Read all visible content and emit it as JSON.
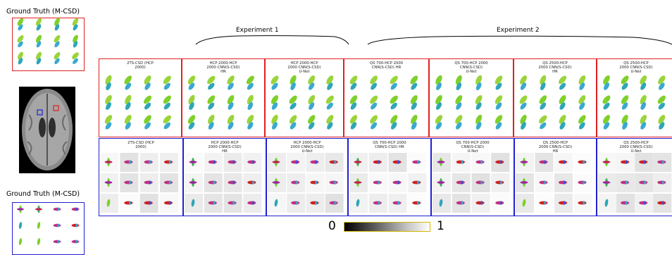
{
  "ground_truth": {
    "top_label": "Ground Truth (M-CSD)",
    "bottom_label": "Ground Truth (M-CSD)"
  },
  "experiments": [
    {
      "label": "Experiment 1"
    },
    {
      "label": "Experiment 2"
    }
  ],
  "methods": [
    "2TS-CSD (HCP\n2000)",
    "HCP 2000-HCP\n2000 CNN(S-CSD)\nHR",
    "HCP 2000-HCP\n2000 CNN(S-CSD)\nU-Net",
    "QS 700-HCP 2000\nCNN(S-CSD)  HR",
    "QS 700-HCP 2000\nCNN(S-CSD)\nU-Net",
    "QS 2500-HCP\n2000 CNN(S-CSD)\nHR",
    "QS 2500-HCP\n2000 CNN(S-CSD)\nU-Net"
  ],
  "colorbar": {
    "min_label": "0",
    "max_label": "1"
  },
  "colors": {
    "red_roi": "#e02020",
    "blue_roi": "#2020d0",
    "colorbar_border": "#d4b800"
  }
}
